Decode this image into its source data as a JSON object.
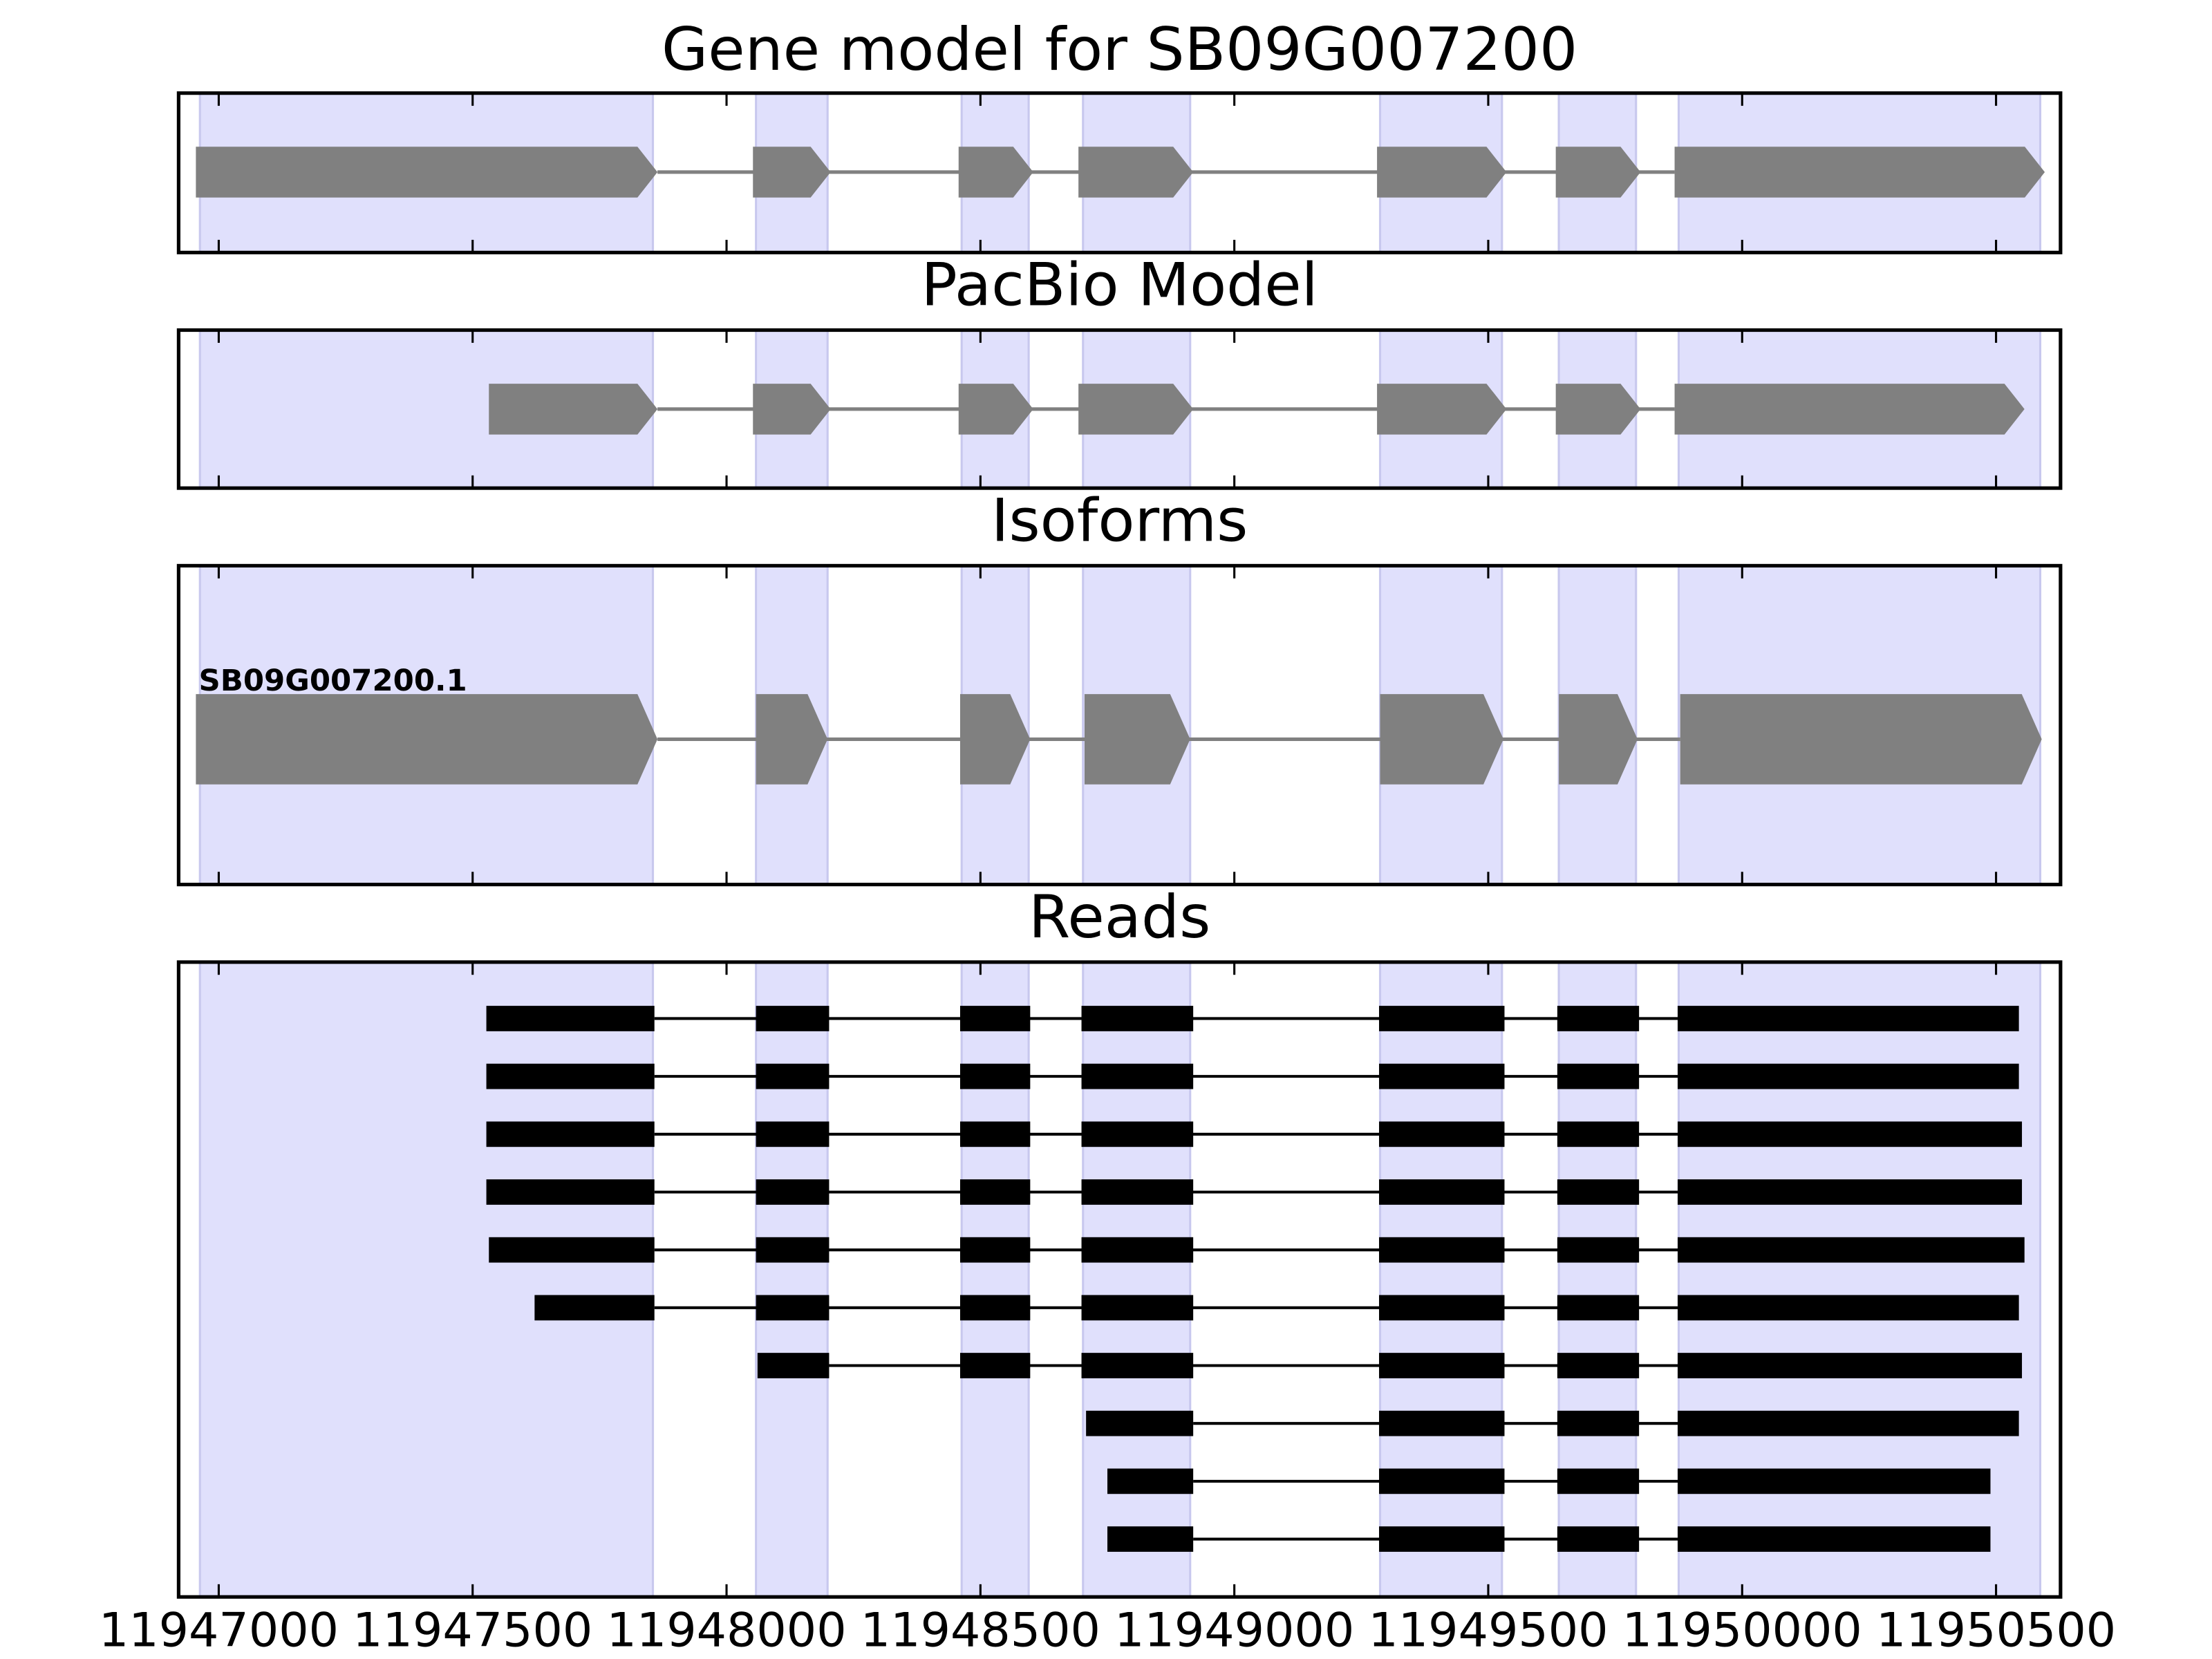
{
  "chart_data": [
    {
      "type": "gene-track",
      "title": "Gene model for SB09G007200",
      "xlim": [
        11946921,
        11950627
      ],
      "xticks": [
        11947000,
        11947500,
        11948000,
        11948500,
        11949000,
        11949500,
        11950000,
        11950500
      ],
      "region_color": "#e0e0fc",
      "regions": [
        [
          11946963,
          11947855
        ],
        [
          11948058,
          11948199
        ],
        [
          11948463,
          11948595
        ],
        [
          11948702,
          11948913
        ],
        [
          11949287,
          11949527
        ],
        [
          11949639,
          11949791
        ],
        [
          11949875,
          11950587
        ]
      ],
      "color": "#808080",
      "tracks": [
        {
          "exons": [
            [
              11946955,
              11947864
            ],
            [
              11948052,
              11948205
            ],
            [
              11948457,
              11948604
            ],
            [
              11948693,
              11948919
            ],
            [
              11949281,
              11949536
            ],
            [
              11949633,
              11949800
            ],
            [
              11949867,
              11950596
            ]
          ]
        }
      ]
    },
    {
      "type": "gene-track",
      "title": "PacBio Model",
      "xlim": [
        11946921,
        11950627
      ],
      "xticks": [
        11947000,
        11947500,
        11948000,
        11948500,
        11949000,
        11949500,
        11950000,
        11950500
      ],
      "region_color": "#e0e0fc",
      "regions": [
        [
          11946963,
          11947855
        ],
        [
          11948058,
          11948199
        ],
        [
          11948463,
          11948595
        ],
        [
          11948702,
          11948913
        ],
        [
          11949287,
          11949527
        ],
        [
          11949639,
          11949791
        ],
        [
          11949875,
          11950587
        ]
      ],
      "color": "#808080",
      "tracks": [
        {
          "exons": [
            [
              11947532,
              11947864
            ],
            [
              11948052,
              11948205
            ],
            [
              11948457,
              11948604
            ],
            [
              11948693,
              11948919
            ],
            [
              11949281,
              11949536
            ],
            [
              11949633,
              11949800
            ],
            [
              11949867,
              11950556
            ]
          ]
        }
      ]
    },
    {
      "type": "gene-track",
      "title": "Isoforms",
      "xlim": [
        11946921,
        11950627
      ],
      "xticks": [
        11947000,
        11947500,
        11948000,
        11948500,
        11949000,
        11949500,
        11950000,
        11950500
      ],
      "region_color": "#e0e0fc",
      "regions": [
        [
          11946963,
          11947855
        ],
        [
          11948058,
          11948199
        ],
        [
          11948463,
          11948595
        ],
        [
          11948702,
          11948913
        ],
        [
          11949287,
          11949527
        ],
        [
          11949639,
          11949791
        ],
        [
          11949875,
          11950587
        ]
      ],
      "color": "#808080",
      "tracks": [
        {
          "label": "SB09G007200.1",
          "exons": [
            [
              11946955,
              11947864
            ],
            [
              11948058,
              11948199
            ],
            [
              11948460,
              11948598
            ],
            [
              11948705,
              11948913
            ],
            [
              11949287,
              11949530
            ],
            [
              11949639,
              11949794
            ],
            [
              11949878,
              11950590
            ]
          ]
        }
      ]
    },
    {
      "type": "read-track",
      "title": "Reads",
      "xlim": [
        11946921,
        11950627
      ],
      "xticks": [
        11947000,
        11947500,
        11948000,
        11948500,
        11949000,
        11949500,
        11950000,
        11950500
      ],
      "region_color": "#e0e0fc",
      "regions": [
        [
          11946963,
          11947855
        ],
        [
          11948058,
          11948199
        ],
        [
          11948463,
          11948595
        ],
        [
          11948702,
          11948913
        ],
        [
          11949287,
          11949527
        ],
        [
          11949639,
          11949791
        ],
        [
          11949875,
          11950587
        ]
      ],
      "color": "#000000",
      "tracks": [
        {
          "exons": [
            [
              11947527,
              11947858
            ],
            [
              11948058,
              11948202
            ],
            [
              11948460,
              11948598
            ],
            [
              11948699,
              11948919
            ],
            [
              11949285,
              11949532
            ],
            [
              11949636,
              11949797
            ],
            [
              11949873,
              11950545
            ]
          ]
        },
        {
          "exons": [
            [
              11947527,
              11947858
            ],
            [
              11948058,
              11948202
            ],
            [
              11948460,
              11948598
            ],
            [
              11948699,
              11948919
            ],
            [
              11949285,
              11949532
            ],
            [
              11949636,
              11949797
            ],
            [
              11949873,
              11950545
            ]
          ]
        },
        {
          "exons": [
            [
              11947527,
              11947858
            ],
            [
              11948058,
              11948202
            ],
            [
              11948460,
              11948598
            ],
            [
              11948699,
              11948919
            ],
            [
              11949285,
              11949532
            ],
            [
              11949636,
              11949797
            ],
            [
              11949873,
              11950551
            ]
          ]
        },
        {
          "exons": [
            [
              11947527,
              11947858
            ],
            [
              11948058,
              11948202
            ],
            [
              11948460,
              11948598
            ],
            [
              11948699,
              11948919
            ],
            [
              11949285,
              11949532
            ],
            [
              11949636,
              11949797
            ],
            [
              11949873,
              11950551
            ]
          ]
        },
        {
          "exons": [
            [
              11947532,
              11947858
            ],
            [
              11948058,
              11948202
            ],
            [
              11948460,
              11948598
            ],
            [
              11948699,
              11948919
            ],
            [
              11949285,
              11949532
            ],
            [
              11949636,
              11949797
            ],
            [
              11949873,
              11950556
            ]
          ]
        },
        {
          "exons": [
            [
              11947622,
              11947858
            ],
            [
              11948058,
              11948202
            ],
            [
              11948460,
              11948598
            ],
            [
              11948699,
              11948919
            ],
            [
              11949285,
              11949532
            ],
            [
              11949636,
              11949797
            ],
            [
              11949873,
              11950545
            ]
          ]
        },
        {
          "exons": [
            [
              11948061,
              11948202
            ],
            [
              11948460,
              11948598
            ],
            [
              11948699,
              11948919
            ],
            [
              11949285,
              11949532
            ],
            [
              11949636,
              11949797
            ],
            [
              11949873,
              11950551
            ]
          ]
        },
        {
          "exons": [
            [
              11948708,
              11948919
            ],
            [
              11949285,
              11949532
            ],
            [
              11949636,
              11949797
            ],
            [
              11949873,
              11950545
            ]
          ]
        },
        {
          "exons": [
            [
              11948750,
              11948919
            ],
            [
              11949285,
              11949532
            ],
            [
              11949636,
              11949797
            ],
            [
              11949873,
              11950489
            ]
          ]
        },
        {
          "exons": [
            [
              11948750,
              11948919
            ],
            [
              11949285,
              11949532
            ],
            [
              11949636,
              11949797
            ],
            [
              11949873,
              11950489
            ]
          ]
        }
      ]
    }
  ]
}
